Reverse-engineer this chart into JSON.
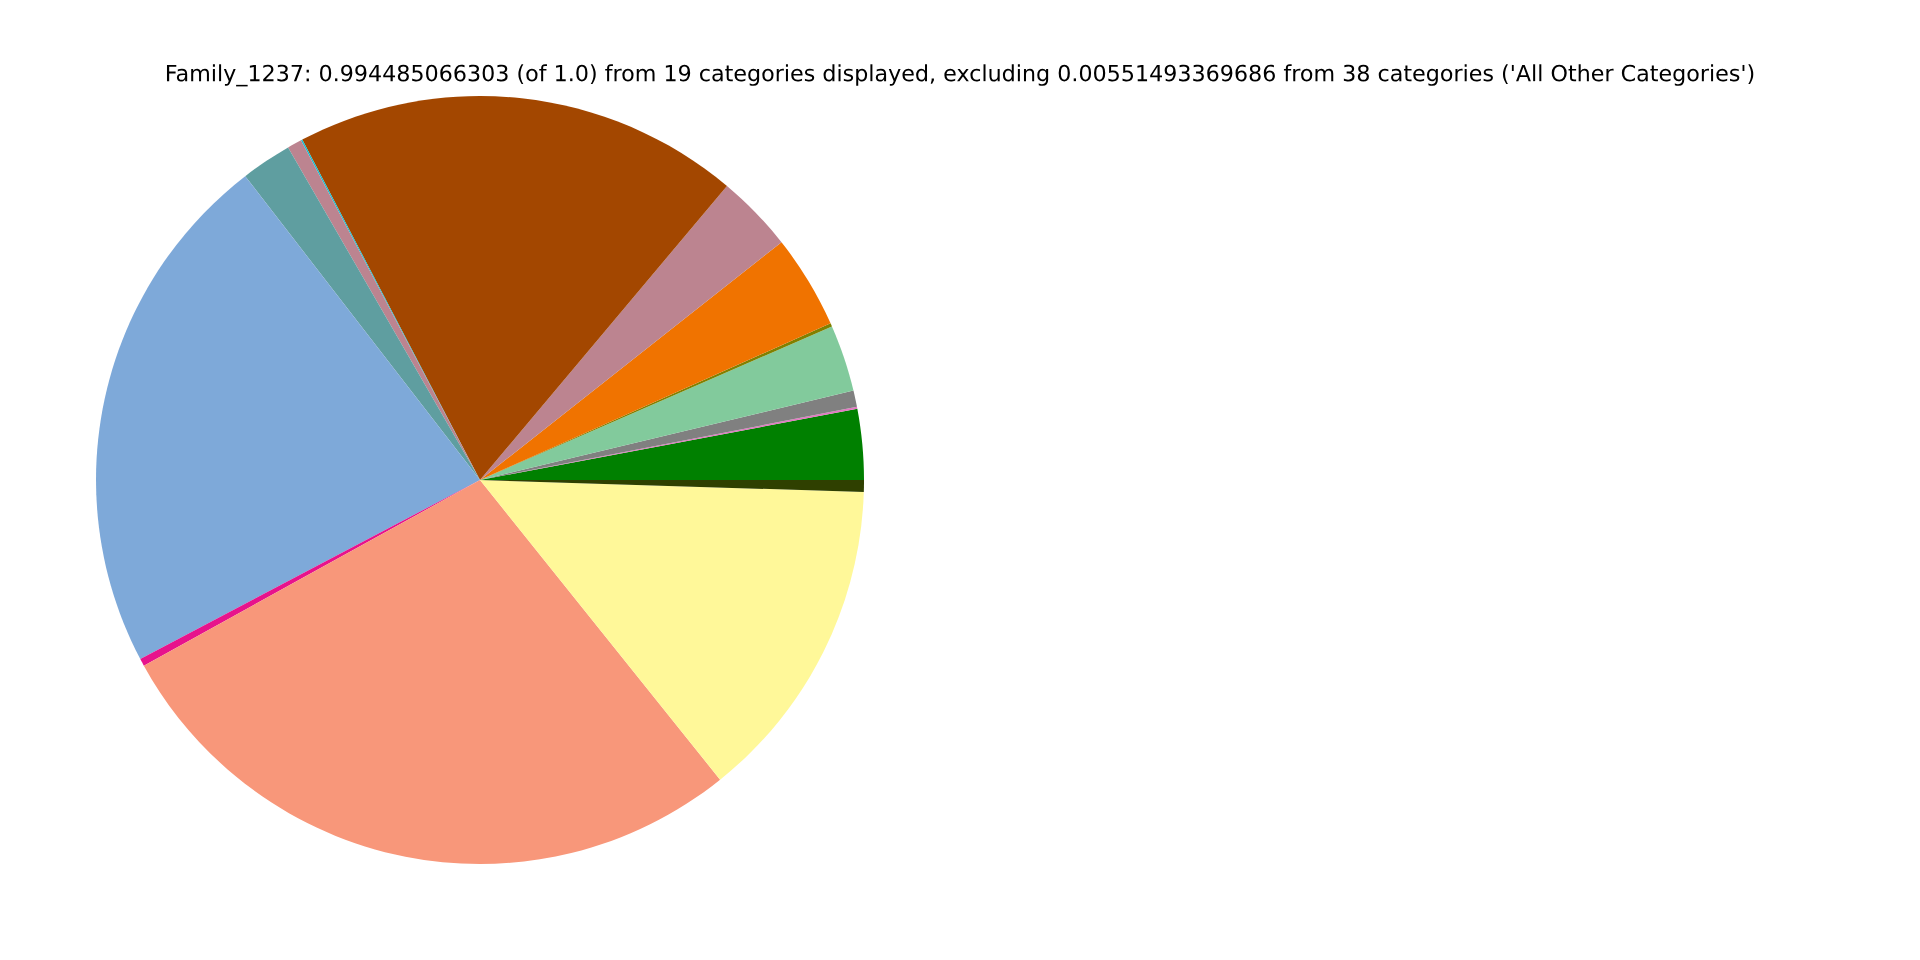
{
  "chart_data": {
    "type": "pie",
    "title": "Family_1237: 0.994485066303 (of 1.0) from 19 categories displayed, excluding 0.00551493369686 from 38 categories ('All Other Categories')",
    "categories": [
      null,
      null,
      null,
      null,
      null,
      null,
      null,
      null,
      null,
      null,
      null,
      null,
      null,
      null,
      null,
      null
    ],
    "values": [
      2.97,
      0.08,
      0.69,
      2.81,
      0.14,
      3.94,
      3.25,
      18.78,
      0.06,
      0.61,
      2.14,
      22.25,
      0.31,
      27.72,
      13.75,
      0.5
    ],
    "colors": [
      "#008000",
      "#e377c2",
      "#808080",
      "#82ca9c",
      "#808000",
      "#f07300",
      "#bc8490",
      "#a34700",
      "#17becf",
      "#bc8490",
      "#5f9ea0",
      "#7ea9d9",
      "#e7138c",
      "#f8977a",
      "#fff899",
      "#2f4000"
    ]
  }
}
